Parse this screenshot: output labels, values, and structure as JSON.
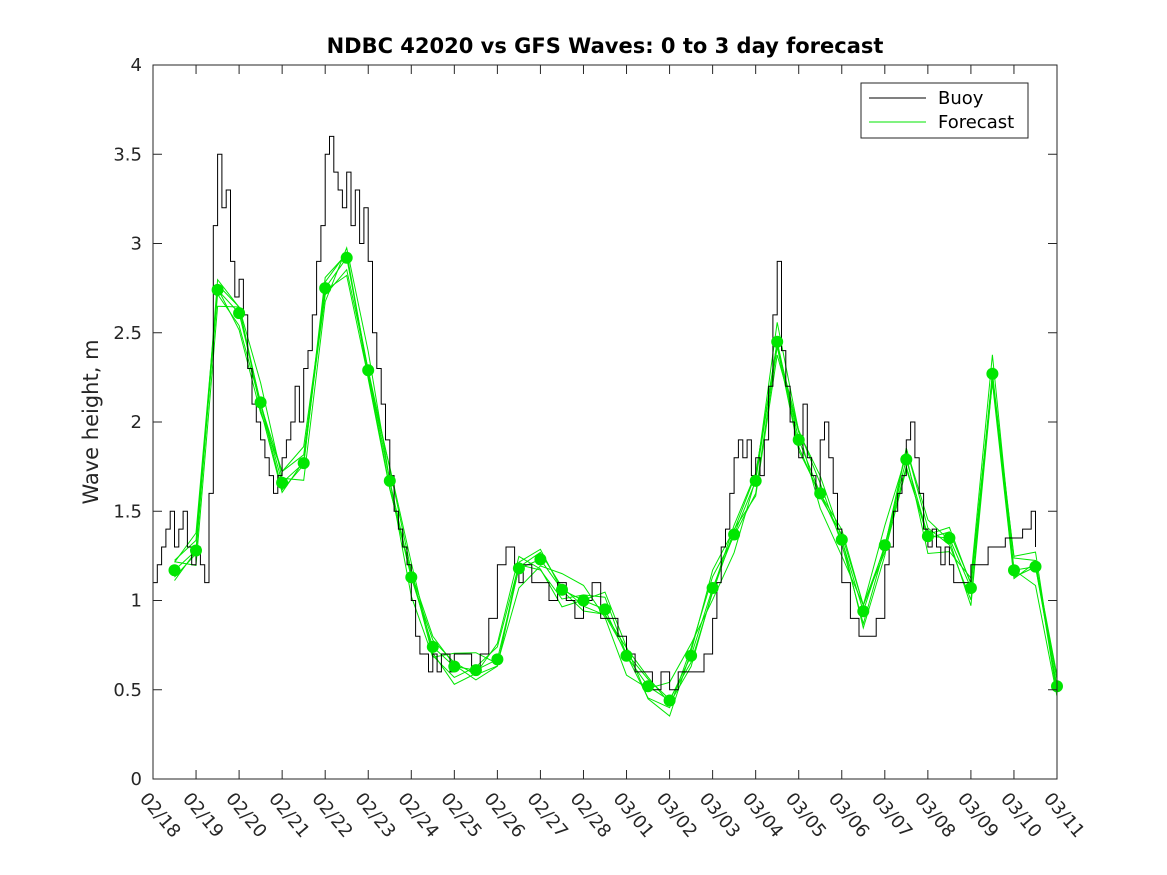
{
  "chart_data": {
    "type": "line",
    "title": "NDBC 42020 vs GFS Waves: 0 to 3 day forecast",
    "xlabel": "",
    "ylabel": "Wave height, m",
    "xlim": [
      0,
      21
    ],
    "ylim": [
      0,
      4
    ],
    "yticks": [
      0,
      0.5,
      1,
      1.5,
      2,
      2.5,
      3,
      3.5,
      4
    ],
    "ytick_labels": [
      "0",
      "0.5",
      "1",
      "1.5",
      "2",
      "2.5",
      "3",
      "3.5",
      "4"
    ],
    "x_tick_labels": [
      "02/18",
      "02/19",
      "02/20",
      "02/21",
      "02/22",
      "02/23",
      "02/24",
      "02/25",
      "02/26",
      "02/27",
      "02/28",
      "03/01",
      "03/02",
      "03/03",
      "03/04",
      "03/05",
      "03/06",
      "03/07",
      "03/08",
      "03/09",
      "03/10",
      "03/11"
    ],
    "x_units": "days since 02/18 00Z",
    "legend_position": "top-right",
    "grid": false,
    "series": [
      {
        "name": "Buoy",
        "color": "#000000",
        "x": [
          0,
          0.1,
          0.2,
          0.3,
          0.4,
          0.5,
          0.6,
          0.7,
          0.8,
          0.9,
          1.0,
          1.1,
          1.2,
          1.3,
          1.4,
          1.5,
          1.6,
          1.7,
          1.8,
          1.9,
          2.0,
          2.1,
          2.2,
          2.3,
          2.4,
          2.5,
          2.6,
          2.7,
          2.8,
          2.9,
          3.0,
          3.1,
          3.2,
          3.3,
          3.4,
          3.5,
          3.6,
          3.7,
          3.8,
          3.9,
          4.0,
          4.1,
          4.2,
          4.3,
          4.4,
          4.5,
          4.6,
          4.7,
          4.8,
          4.9,
          5.0,
          5.1,
          5.2,
          5.3,
          5.4,
          5.5,
          5.6,
          5.7,
          5.8,
          5.9,
          6.0,
          6.1,
          6.2,
          6.3,
          6.4,
          6.5,
          6.6,
          6.7,
          6.8,
          6.9,
          7.0,
          7.2,
          7.4,
          7.6,
          7.8,
          8.0,
          8.2,
          8.4,
          8.5,
          8.6,
          8.8,
          9.0,
          9.2,
          9.4,
          9.6,
          9.8,
          10.0,
          10.2,
          10.4,
          10.6,
          10.8,
          11.0,
          11.2,
          11.4,
          11.6,
          11.8,
          12.0,
          12.2,
          12.4,
          12.6,
          12.8,
          13.0,
          13.1,
          13.2,
          13.3,
          13.4,
          13.5,
          13.6,
          13.7,
          13.8,
          13.9,
          14.0,
          14.1,
          14.2,
          14.3,
          14.4,
          14.5,
          14.6,
          14.7,
          14.8,
          14.9,
          15.0,
          15.1,
          15.2,
          15.3,
          15.4,
          15.5,
          15.6,
          15.7,
          15.8,
          15.9,
          16.0,
          16.2,
          16.4,
          16.6,
          16.8,
          17.0,
          17.1,
          17.2,
          17.3,
          17.4,
          17.5,
          17.6,
          17.7,
          17.8,
          17.9,
          18.0,
          18.1,
          18.2,
          18.3,
          18.4,
          18.5,
          18.6,
          19.0,
          19.4,
          19.8,
          20.2,
          20.4,
          20.5
        ],
        "values": [
          1.1,
          1.2,
          1.3,
          1.4,
          1.5,
          1.3,
          1.4,
          1.5,
          1.3,
          1.2,
          1.3,
          1.2,
          1.1,
          1.6,
          3.1,
          3.5,
          3.2,
          3.3,
          2.9,
          2.7,
          2.8,
          2.6,
          2.3,
          2.1,
          2.0,
          1.9,
          1.8,
          1.7,
          1.6,
          1.7,
          1.8,
          1.9,
          2.0,
          2.2,
          2.0,
          2.3,
          2.4,
          2.6,
          2.9,
          3.1,
          3.5,
          3.6,
          3.4,
          3.3,
          3.2,
          3.4,
          3.1,
          3.3,
          3.0,
          3.2,
          2.9,
          2.5,
          2.3,
          2.1,
          1.9,
          1.7,
          1.5,
          1.4,
          1.3,
          1.2,
          1.0,
          0.8,
          0.7,
          0.7,
          0.6,
          0.7,
          0.6,
          0.7,
          0.7,
          0.6,
          0.7,
          0.7,
          0.6,
          0.7,
          0.9,
          1.2,
          1.3,
          1.2,
          1.1,
          1.2,
          1.1,
          1.1,
          1.0,
          1.1,
          1.0,
          0.9,
          1.0,
          1.1,
          0.9,
          0.9,
          0.8,
          0.7,
          0.6,
          0.6,
          0.5,
          0.6,
          0.5,
          0.6,
          0.6,
          0.6,
          0.7,
          0.9,
          1.1,
          1.3,
          1.4,
          1.6,
          1.8,
          1.9,
          1.8,
          1.9,
          1.7,
          1.8,
          1.7,
          1.9,
          2.2,
          2.6,
          2.9,
          2.4,
          2.2,
          2.0,
          1.9,
          1.8,
          2.1,
          1.8,
          1.7,
          1.6,
          1.9,
          2.0,
          1.8,
          1.6,
          1.4,
          1.1,
          0.9,
          0.8,
          0.8,
          0.9,
          1.2,
          1.3,
          1.5,
          1.6,
          1.7,
          1.9,
          2.0,
          1.8,
          1.6,
          1.4,
          1.3,
          1.4,
          1.3,
          1.2,
          1.3,
          1.2,
          1.1,
          1.2,
          1.3,
          1.35,
          1.4,
          1.5,
          1.3
        ]
      },
      {
        "name": "Forecast",
        "color": "#00e600",
        "marker_x": [
          0.5,
          1.0,
          1.5,
          2.0,
          2.5,
          3.0,
          3.5,
          4.0,
          4.5,
          5.0,
          5.5,
          6.0,
          6.5,
          7.0,
          7.5,
          8.0,
          8.5,
          9.0,
          9.5,
          10.0,
          10.5,
          11.0,
          11.5,
          12.0,
          12.5,
          13.0,
          13.5,
          14.0,
          14.5,
          15.0,
          15.5,
          16.0,
          16.5,
          17.0,
          17.5,
          18.0,
          18.5,
          19.0,
          19.5,
          20.0,
          20.5,
          21.0
        ],
        "marker_values": [
          1.17,
          1.28,
          2.74,
          2.61,
          2.11,
          1.66,
          1.77,
          2.75,
          2.92,
          2.29,
          1.67,
          1.13,
          0.74,
          0.63,
          0.61,
          0.67,
          1.18,
          1.23,
          1.06,
          1.0,
          0.95,
          0.69,
          0.52,
          0.44,
          0.69,
          1.07,
          1.37,
          1.67,
          2.45,
          1.9,
          1.6,
          1.34,
          0.94,
          1.31,
          1.79,
          1.36,
          1.35,
          1.07,
          2.27,
          1.17,
          1.19,
          0.52
        ]
      }
    ]
  }
}
